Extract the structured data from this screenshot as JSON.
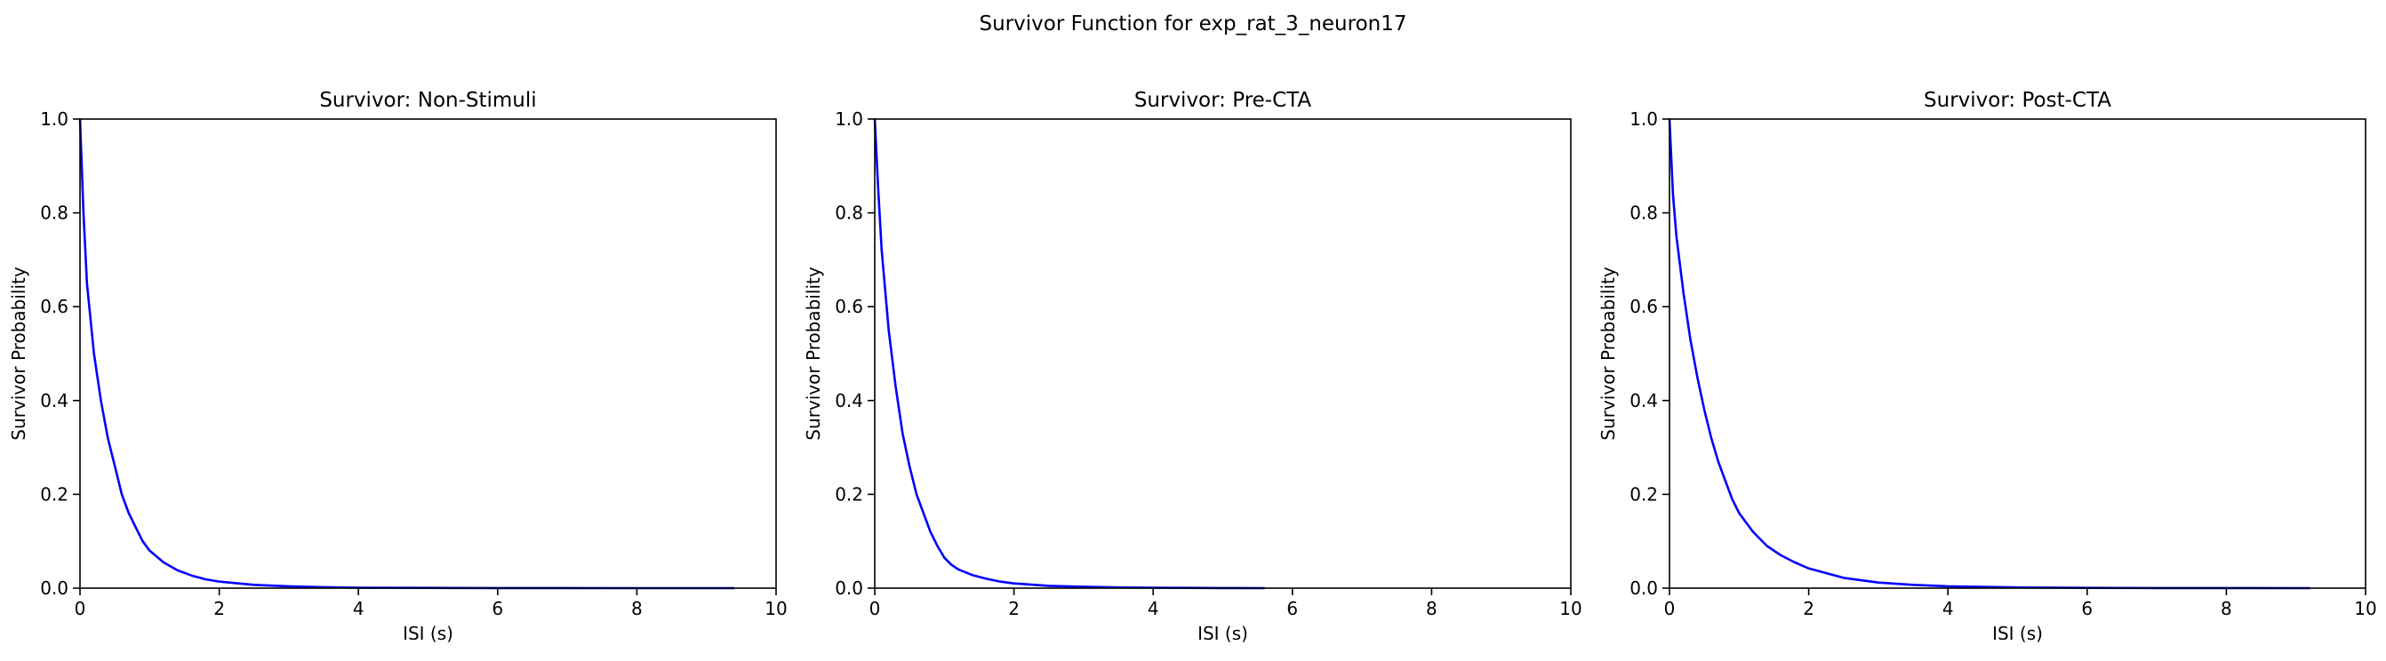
{
  "figure": {
    "suptitle": "Survivor Function for exp_rat_3_neuron17"
  },
  "style": {
    "line_color": "#0000ff",
    "axis_color": "#000000",
    "background": "#ffffff"
  },
  "chart_data": [
    {
      "type": "line",
      "title": "Survivor: Non-Stimuli",
      "xlabel": "ISI (s)",
      "ylabel": "Survivor Probability",
      "xlim": [
        0,
        10
      ],
      "ylim": [
        0,
        1
      ],
      "xticks": [
        "0",
        "2",
        "4",
        "6",
        "8",
        "10"
      ],
      "yticks": [
        "0.0",
        "0.2",
        "0.4",
        "0.6",
        "0.8",
        "1.0"
      ],
      "grid": false,
      "series": [
        {
          "x": [
            0,
            0.05,
            0.1,
            0.2,
            0.3,
            0.4,
            0.5,
            0.6,
            0.7,
            0.8,
            0.9,
            1.0,
            1.2,
            1.4,
            1.6,
            1.8,
            2.0,
            2.5,
            3.0,
            3.5,
            4.0,
            5.0,
            6.0,
            7.0,
            8.0,
            9.4
          ],
          "y": [
            1.0,
            0.8,
            0.65,
            0.5,
            0.4,
            0.32,
            0.26,
            0.2,
            0.16,
            0.13,
            0.1,
            0.08,
            0.055,
            0.038,
            0.027,
            0.019,
            0.014,
            0.007,
            0.004,
            0.002,
            0.001,
            0.0005,
            0.0002,
            0.0001,
            0.0,
            0.0
          ]
        }
      ]
    },
    {
      "type": "line",
      "title": "Survivor: Pre-CTA",
      "xlabel": "ISI (s)",
      "ylabel": "Survivor Probability",
      "xlim": [
        0,
        10
      ],
      "ylim": [
        0,
        1
      ],
      "xticks": [
        "0",
        "2",
        "4",
        "6",
        "8",
        "10"
      ],
      "yticks": [
        "0.0",
        "0.2",
        "0.4",
        "0.6",
        "0.8",
        "1.0"
      ],
      "grid": false,
      "series": [
        {
          "x": [
            0,
            0.05,
            0.1,
            0.2,
            0.3,
            0.4,
            0.5,
            0.6,
            0.7,
            0.8,
            0.9,
            1.0,
            1.1,
            1.2,
            1.4,
            1.6,
            1.8,
            2.0,
            2.5,
            3.0,
            3.5,
            4.0,
            4.5,
            5.0,
            5.6
          ],
          "y": [
            1.0,
            0.85,
            0.72,
            0.55,
            0.43,
            0.33,
            0.26,
            0.2,
            0.16,
            0.12,
            0.09,
            0.065,
            0.05,
            0.04,
            0.028,
            0.02,
            0.014,
            0.01,
            0.005,
            0.003,
            0.0015,
            0.001,
            0.0005,
            0.0002,
            0.0
          ]
        }
      ]
    },
    {
      "type": "line",
      "title": "Survivor: Post-CTA",
      "xlabel": "ISI (s)",
      "ylabel": "Survivor Probability",
      "xlim": [
        0,
        10
      ],
      "ylim": [
        0,
        1
      ],
      "xticks": [
        "0",
        "2",
        "4",
        "6",
        "8",
        "10"
      ],
      "yticks": [
        "0.0",
        "0.2",
        "0.4",
        "0.6",
        "0.8",
        "1.0"
      ],
      "grid": false,
      "series": [
        {
          "x": [
            0,
            0.05,
            0.1,
            0.2,
            0.3,
            0.4,
            0.5,
            0.6,
            0.7,
            0.8,
            0.9,
            1.0,
            1.2,
            1.4,
            1.6,
            1.8,
            2.0,
            2.5,
            3.0,
            3.5,
            4.0,
            5.0,
            6.0,
            7.0,
            8.0,
            9.2
          ],
          "y": [
            1.0,
            0.84,
            0.75,
            0.63,
            0.53,
            0.45,
            0.38,
            0.32,
            0.27,
            0.23,
            0.19,
            0.16,
            0.12,
            0.09,
            0.07,
            0.055,
            0.042,
            0.022,
            0.012,
            0.007,
            0.004,
            0.0015,
            0.0005,
            0.0002,
            0.0001,
            0.0
          ]
        }
      ]
    }
  ]
}
